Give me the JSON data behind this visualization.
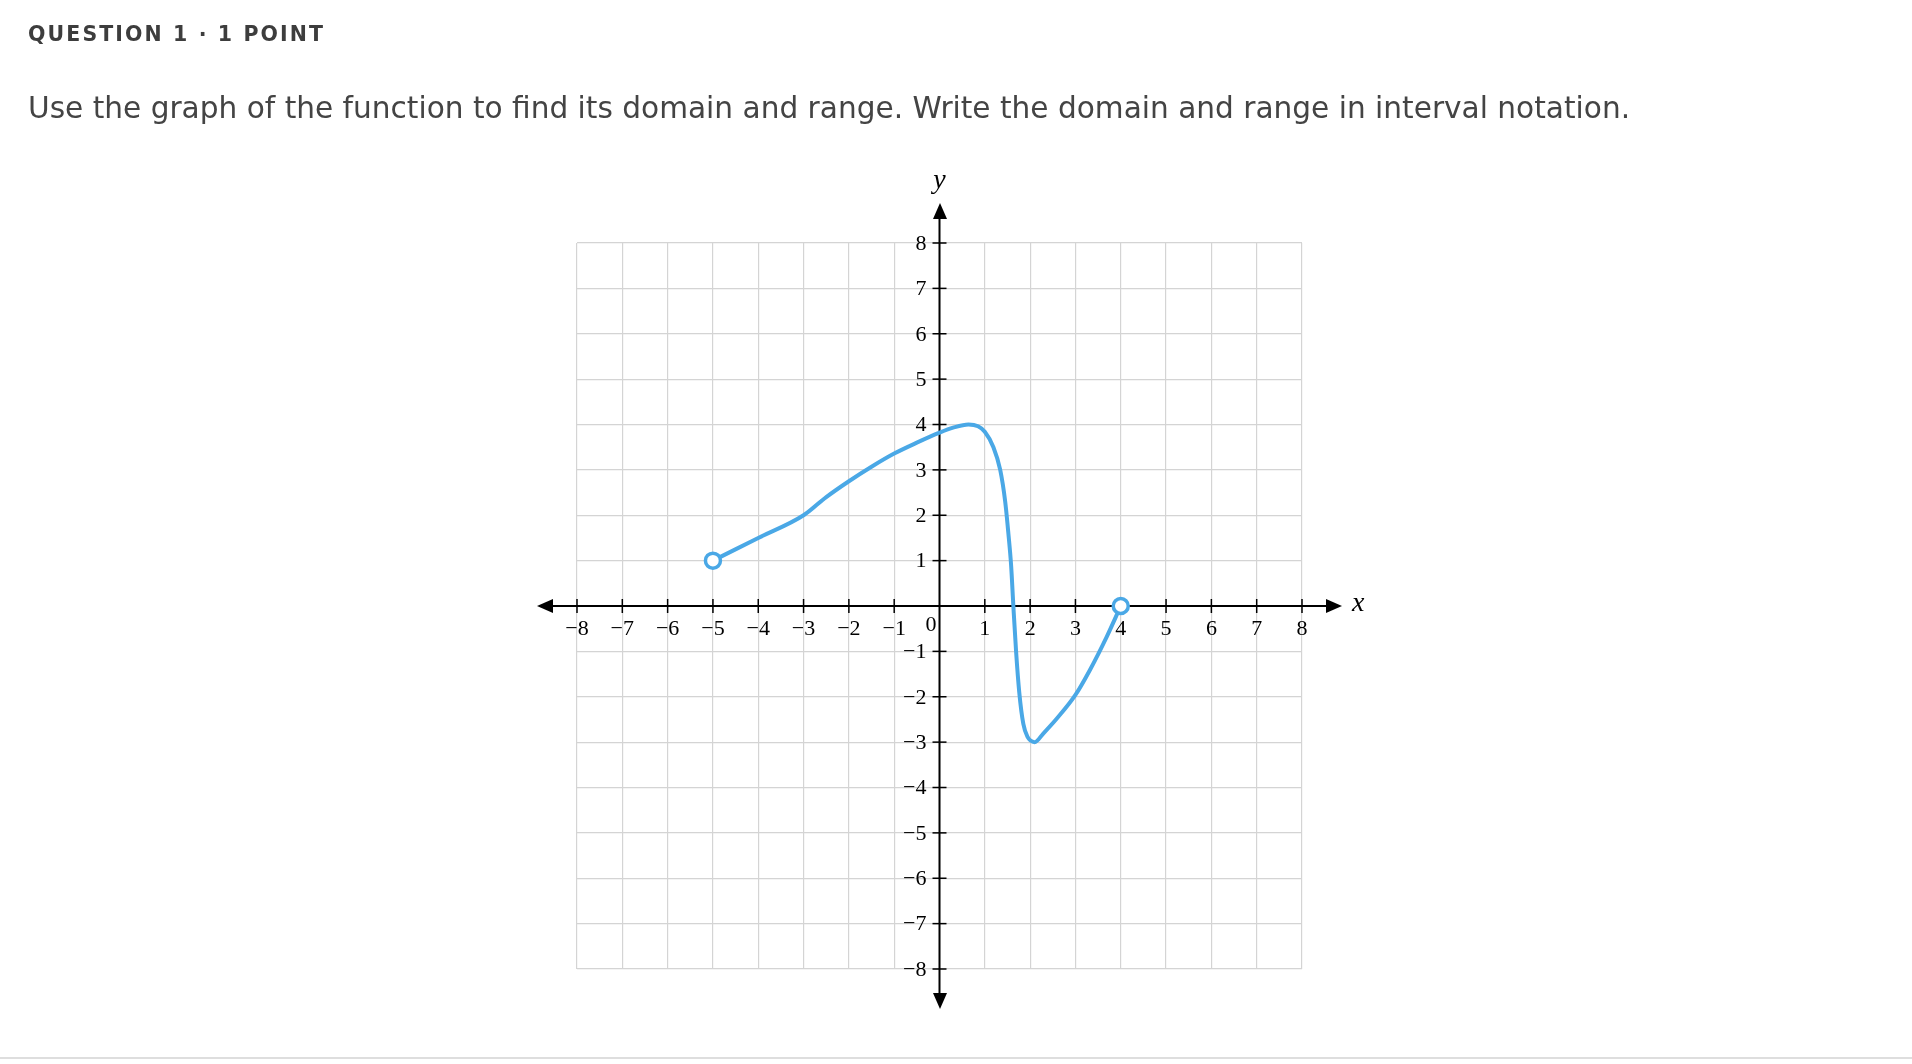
{
  "chart_data": {
    "type": "line",
    "title": "QUESTION 1 · 1 POINT",
    "subtitle": "Use the graph of the function to find its domain and range. Write the domain and range in interval notation.",
    "xlabel": "x",
    "ylabel": "y",
    "xlim": [
      -8,
      8
    ],
    "ylim": [
      -8,
      8
    ],
    "xticks": [
      -8,
      -7,
      -6,
      -5,
      -4,
      -3,
      -2,
      -1,
      0,
      1,
      2,
      3,
      4,
      5,
      6,
      7,
      8
    ],
    "yticks": [
      -8,
      -7,
      -6,
      -5,
      -4,
      -3,
      -2,
      -1,
      1,
      2,
      3,
      4,
      5,
      6,
      7,
      8
    ],
    "grid": true,
    "series": [
      {
        "type": "line",
        "color": "#4aa8e6",
        "marker": "none",
        "line_style": "solid",
        "x": [
          -5,
          -4,
          -3,
          -2.5,
          -2,
          -1.5,
          -1,
          -0.5,
          0,
          0.3,
          0.64,
          0.85,
          1,
          1.19,
          1.34,
          1.45,
          1.52,
          1.58,
          1.63,
          1.69,
          1.76,
          1.85,
          1.94,
          2.1,
          2.29,
          2.59,
          3,
          3.32,
          3.69,
          4
        ],
        "values": [
          1,
          1.5,
          2,
          2.4,
          2.75,
          3.07,
          3.36,
          3.6,
          3.82,
          3.93,
          4,
          3.96,
          3.84,
          3.5,
          3,
          2.3,
          1.6,
          0.9,
          0,
          -1,
          -1.9,
          -2.6,
          -2.88,
          -3,
          -2.81,
          -2.48,
          -1.96,
          -1.41,
          -0.68,
          0
        ]
      },
      {
        "type": "scatter",
        "color": "#4aa8e6",
        "marker": "circle",
        "x": [
          -5,
          4
        ],
        "values": [
          1,
          0
        ]
      }
    ]
  }
}
